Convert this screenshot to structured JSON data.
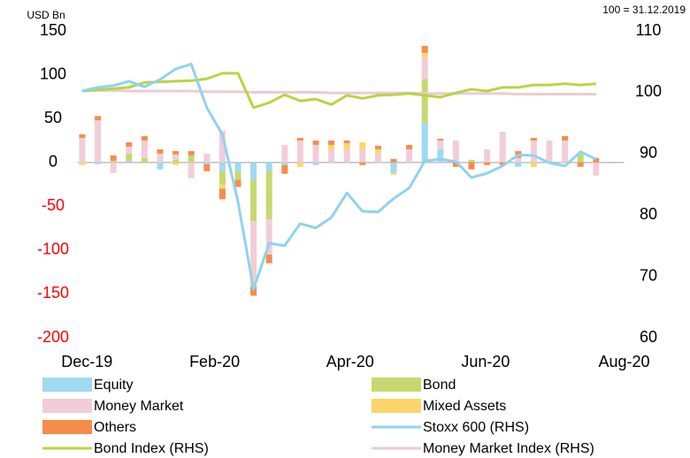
{
  "chart_data": {
    "type": "bar",
    "annotations": [
      "USD Bn",
      "100 = 31.12.2019"
    ],
    "x": [
      0,
      1,
      2,
      3,
      4,
      5,
      6,
      7,
      8,
      9,
      10,
      11,
      12,
      13,
      14,
      15,
      16,
      17,
      18,
      19,
      20,
      21,
      22,
      23,
      24,
      25,
      26,
      27,
      28,
      29,
      30,
      31,
      32,
      33
    ],
    "xlim": [
      -0.3,
      34.8
    ],
    "xticks": [
      {
        "value": 0.3,
        "label": "Dec-19"
      },
      {
        "value": 8.5,
        "label": "Feb-20"
      },
      {
        "value": 17.2,
        "label": "Apr-20"
      },
      {
        "value": 25.9,
        "label": "Jun-20"
      },
      {
        "value": 34.8,
        "label": "Aug-20"
      }
    ],
    "ylim": [
      -200,
      150
    ],
    "yticks": [
      -200,
      -150,
      -100,
      -50,
      0,
      50,
      100,
      150
    ],
    "y2lim": [
      60,
      110
    ],
    "y2ticks": [
      60,
      70,
      80,
      90,
      100,
      110
    ],
    "series": [
      {
        "name": "Equity",
        "type": "bar",
        "color": "#9fd9f3",
        "values": [
          0,
          -2,
          0,
          2,
          0,
          -8,
          0,
          0,
          -2,
          -10,
          -10,
          -20,
          -10,
          -3,
          0,
          -3,
          0,
          0,
          0,
          0,
          -12,
          0,
          45,
          15,
          0,
          0,
          0,
          0,
          -5,
          0,
          0,
          0,
          0,
          0
        ]
      },
      {
        "name": "Bond",
        "type": "bar",
        "color": "#c6d96e",
        "values": [
          0,
          0,
          2,
          8,
          5,
          0,
          3,
          8,
          0,
          -15,
          -10,
          -47,
          -55,
          0,
          0,
          0,
          0,
          0,
          0,
          0,
          0,
          0,
          50,
          0,
          0,
          3,
          0,
          0,
          0,
          0,
          0,
          0,
          10,
          0
        ]
      },
      {
        "name": "Money Market",
        "type": "bar",
        "color": "#f2cdd8",
        "values": [
          28,
          48,
          -12,
          8,
          20,
          10,
          6,
          -18,
          10,
          36,
          0,
          -70,
          -40,
          20,
          25,
          20,
          15,
          15,
          15,
          10,
          0,
          15,
          25,
          10,
          25,
          0,
          15,
          35,
          5,
          25,
          25,
          25,
          0,
          -15
        ]
      },
      {
        "name": "Mixed Assets",
        "type": "bar",
        "color": "#fdd46c",
        "values": [
          -3,
          0,
          0,
          0,
          0,
          0,
          -3,
          0,
          0,
          -5,
          0,
          -5,
          0,
          0,
          -5,
          0,
          5,
          7,
          8,
          5,
          -2,
          0,
          5,
          0,
          0,
          0,
          0,
          0,
          0,
          -5,
          0,
          0,
          0,
          0
        ]
      },
      {
        "name": "Others",
        "type": "bar",
        "color": "#f58c4c",
        "values": [
          4,
          5,
          6,
          5,
          5,
          5,
          4,
          5,
          -8,
          -12,
          -8,
          -10,
          -10,
          -10,
          3,
          5,
          5,
          3,
          -3,
          4,
          4,
          5,
          8,
          2,
          -5,
          -8,
          -3,
          -3,
          8,
          3,
          0,
          5,
          -5,
          5
        ]
      },
      {
        "name": "Stoxx 600 (RHS)",
        "type": "line",
        "axis": "y2",
        "color": "#8fd3f0",
        "values": [
          100.2,
          100.8,
          101.1,
          101.8,
          100.9,
          102.1,
          103.8,
          104.6,
          97.5,
          93.1,
          82.2,
          67.9,
          75.4,
          75.0,
          78.6,
          77.9,
          79.6,
          83.6,
          80.6,
          80.5,
          82.7,
          84.4,
          88.8,
          89.1,
          88.7,
          86.1,
          86.8,
          88.0,
          89.8,
          89.7,
          88.5,
          88.0,
          90.3,
          89.1
        ]
      },
      {
        "name": "Bond Index (RHS)",
        "type": "line",
        "axis": "y2",
        "color": "#b9d444",
        "values": [
          100.2,
          100.4,
          100.6,
          100.8,
          101.6,
          101.7,
          101.8,
          101.9,
          102.2,
          103.1,
          103.1,
          97.5,
          98.3,
          99.6,
          98.6,
          98.9,
          98.0,
          99.5,
          99.0,
          99.5,
          99.6,
          99.8,
          99.5,
          99.2,
          99.9,
          100.5,
          100.2,
          100.8,
          100.8,
          101.2,
          101.2,
          101.4,
          101.2,
          101.4
        ]
      },
      {
        "name": "Money Market Index (RHS)",
        "type": "line",
        "axis": "y2",
        "color": "#eccbd3",
        "values": [
          100.3,
          100.3,
          100.3,
          100.2,
          100.2,
          100.2,
          100.2,
          100.2,
          100.1,
          100.1,
          100.1,
          100.0,
          100.0,
          100.0,
          100.0,
          100.0,
          99.9,
          99.9,
          99.9,
          99.9,
          99.9,
          99.9,
          99.8,
          99.8,
          99.8,
          99.8,
          99.8,
          99.8,
          99.7,
          99.7,
          99.7,
          99.7,
          99.7,
          99.7
        ]
      }
    ]
  }
}
